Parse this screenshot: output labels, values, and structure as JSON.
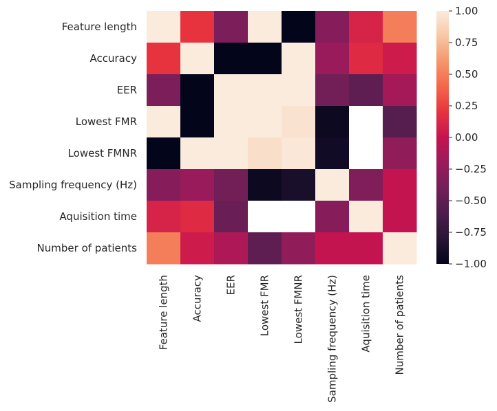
{
  "chart_data": {
    "type": "heatmap",
    "title": "",
    "row_labels": [
      "Feature length",
      "Accuracy",
      "EER",
      "Lowest FMR",
      "Lowest FMNR",
      "Sampling frequency (Hz)",
      "Aquisition time",
      "Number of patients"
    ],
    "col_labels": [
      "Feature length",
      "Accuracy",
      "EER",
      "Lowest FMR",
      "Lowest FMNR",
      "Sampling frequency (Hz)",
      "Aquisition time",
      "Number of patients"
    ],
    "values": [
      [
        1.0,
        0.2,
        -0.35,
        1.0,
        -1.0,
        -0.3,
        0.1,
        0.5
      ],
      [
        0.2,
        1.0,
        -1.0,
        -1.0,
        1.0,
        -0.2,
        0.15,
        0.05
      ],
      [
        -0.35,
        -1.0,
        1.0,
        1.0,
        1.0,
        -0.4,
        -0.5,
        -0.15
      ],
      [
        1.0,
        -1.0,
        1.0,
        1.0,
        0.95,
        -0.95,
        null,
        -0.55
      ],
      [
        -1.0,
        1.0,
        1.0,
        0.93,
        0.98,
        -0.92,
        null,
        -0.25
      ],
      [
        -0.3,
        -0.2,
        -0.4,
        -0.95,
        -0.88,
        1.0,
        -0.33,
        0.0
      ],
      [
        0.1,
        0.15,
        -0.45,
        null,
        null,
        -0.3,
        1.0,
        0.0
      ],
      [
        0.5,
        0.05,
        -0.1,
        -0.5,
        -0.25,
        0.0,
        0.0,
        1.0
      ]
    ],
    "colorbar": {
      "min": -1.0,
      "max": 1.0,
      "ticks": [
        "1.00",
        "0.75",
        "0.50",
        "0.25",
        "0.00",
        "−0.25",
        "−0.50",
        "−0.75",
        "−1.00"
      ],
      "tick_values": [
        1.0,
        0.75,
        0.5,
        0.25,
        0.0,
        -0.25,
        -0.5,
        -0.75,
        -1.0
      ]
    },
    "colormap": "rocket",
    "missing_color": "#ffffff",
    "grid": false
  }
}
